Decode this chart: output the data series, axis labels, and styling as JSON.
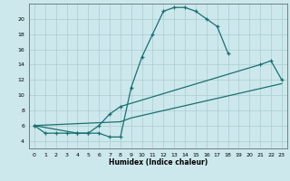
{
  "xlabel": "Humidex (Indice chaleur)",
  "bg_color": "#cce8ed",
  "grid_color": "#aacccc",
  "line_color": "#1a7070",
  "xlim": [
    -0.5,
    23.5
  ],
  "ylim": [
    3,
    22
  ],
  "xticks": [
    0,
    1,
    2,
    3,
    4,
    5,
    6,
    7,
    8,
    9,
    10,
    11,
    12,
    13,
    14,
    15,
    16,
    17,
    18,
    19,
    20,
    21,
    22,
    23
  ],
  "yticks": [
    4,
    6,
    8,
    10,
    12,
    14,
    16,
    18,
    20
  ],
  "curve1_x": [
    0,
    1,
    2,
    3,
    4,
    5,
    6,
    7,
    8,
    9,
    10,
    11,
    12,
    13,
    14,
    15,
    16,
    17,
    18
  ],
  "curve1_y": [
    6,
    5,
    5,
    5,
    5,
    5,
    5,
    4.5,
    4.5,
    11,
    15,
    18,
    21,
    21.5,
    21.5,
    21,
    20,
    19,
    15.5
  ],
  "curve2_x": [
    0,
    4,
    5,
    6,
    7,
    8,
    21,
    22,
    23
  ],
  "curve2_y": [
    6,
    5,
    5,
    6,
    7.5,
    8.5,
    14,
    14.5,
    12
  ],
  "curve3_x": [
    0,
    8,
    9,
    23
  ],
  "curve3_y": [
    6,
    6.5,
    7,
    11.5
  ]
}
